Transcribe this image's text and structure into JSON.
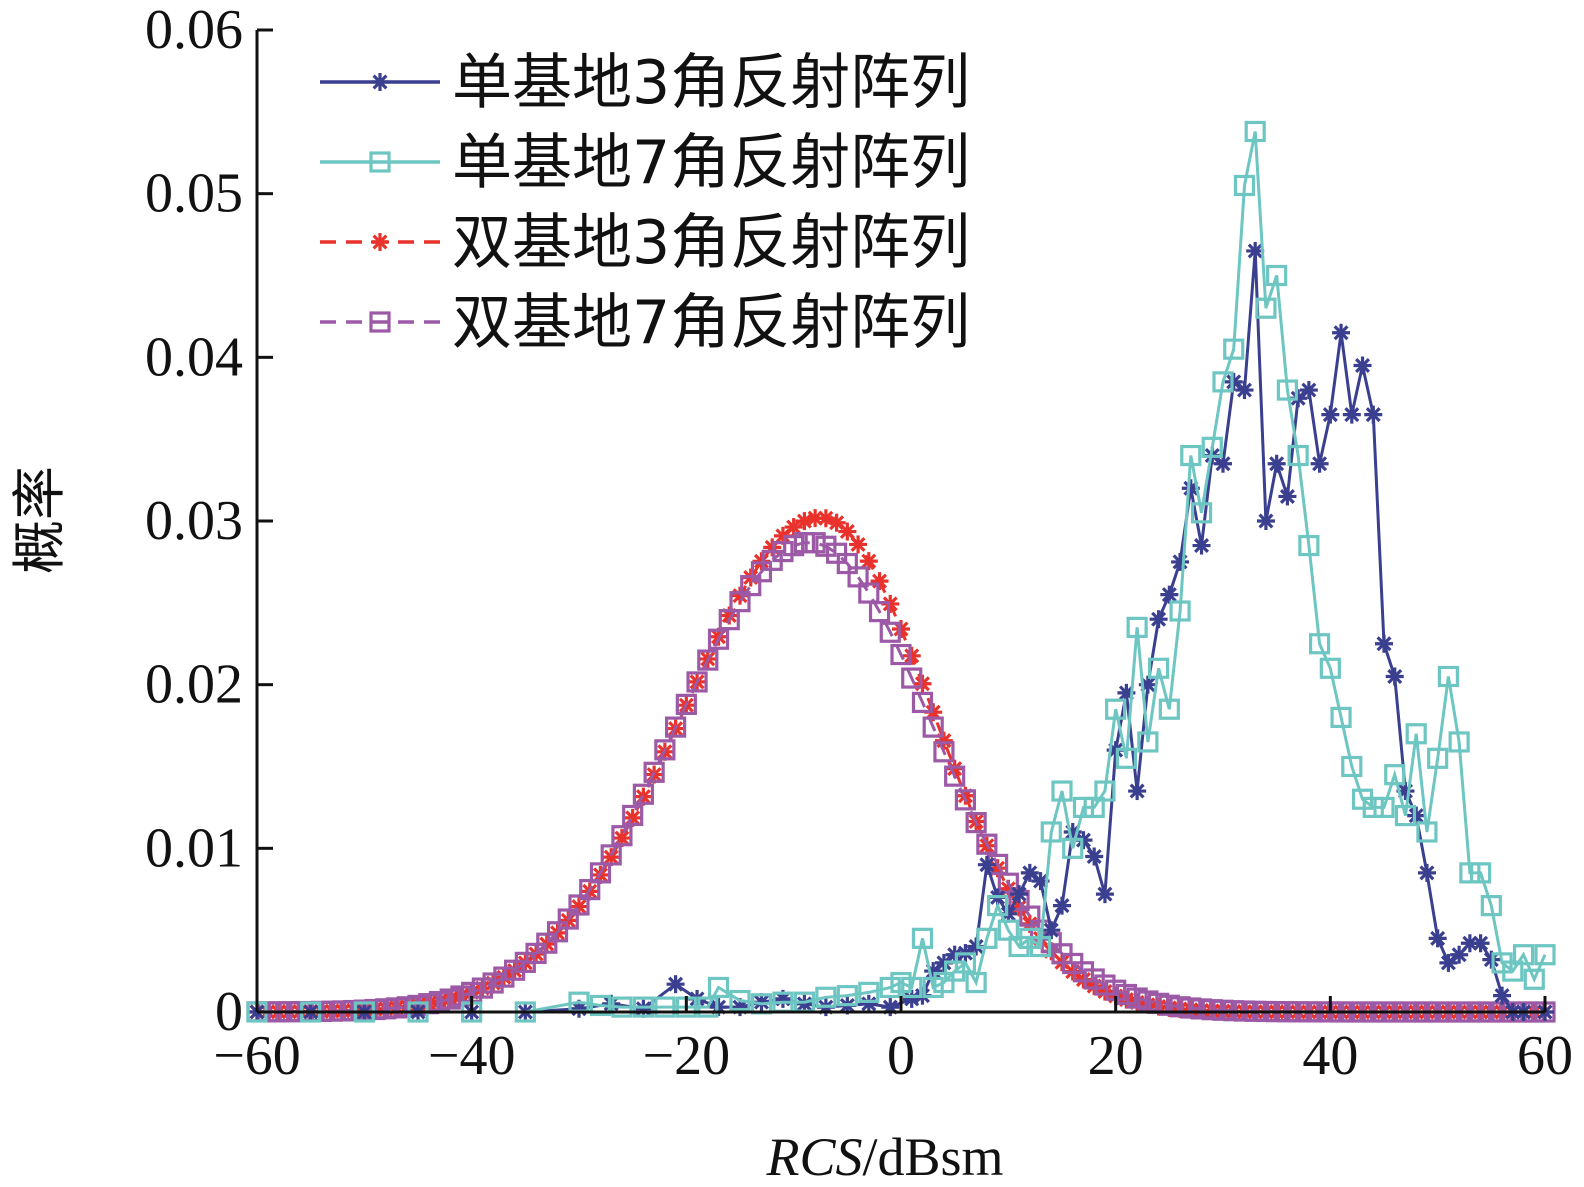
{
  "chart_data": {
    "type": "line",
    "xlabel_italic": "RCS",
    "xlabel_unit": "/dBsm",
    "ylabel": "概率",
    "xlim": [
      -60,
      60
    ],
    "ylim": [
      0,
      0.06
    ],
    "x_ticks": [
      -60,
      -40,
      -20,
      0,
      20,
      40,
      60
    ],
    "x_tick_labels": [
      "−60",
      "−40",
      "−20",
      "0",
      "20",
      "40",
      "60"
    ],
    "y_ticks": [
      0,
      0.01,
      0.02,
      0.03,
      0.04,
      0.05,
      0.06
    ],
    "y_tick_labels": [
      "0",
      "0.01",
      "0.02",
      "0.03",
      "0.04",
      "0.05",
      "0.06"
    ],
    "grid": false,
    "legend_position": "top-left",
    "series": [
      {
        "name": "单基地3角反射阵列",
        "color": "#3b3f8f",
        "marker": "asterisk",
        "line_style": "solid",
        "gauss": false,
        "points": [
          [
            -60,
            0
          ],
          [
            -55,
            0
          ],
          [
            -50,
            0
          ],
          [
            -45,
            0
          ],
          [
            -40,
            0
          ],
          [
            -35,
            0
          ],
          [
            -30,
            0.0002
          ],
          [
            -27,
            0.0005
          ],
          [
            -24,
            0.0002
          ],
          [
            -21,
            0.0017
          ],
          [
            -19,
            0.0008
          ],
          [
            -17,
            0.0003
          ],
          [
            -15,
            0.0003
          ],
          [
            -13,
            0.0006
          ],
          [
            -11,
            0.0008
          ],
          [
            -9,
            0.0005
          ],
          [
            -7,
            0.0003
          ],
          [
            -5,
            0.0004
          ],
          [
            -3,
            0.0005
          ],
          [
            -1,
            0.0003
          ],
          [
            1,
            0.0008
          ],
          [
            2,
            0.001
          ],
          [
            3,
            0.0025
          ],
          [
            4,
            0.003
          ],
          [
            5,
            0.0035
          ],
          [
            6,
            0.0036
          ],
          [
            7,
            0.004
          ],
          [
            8,
            0.009
          ],
          [
            9,
            0.007
          ],
          [
            10,
            0.006
          ],
          [
            11,
            0.0072
          ],
          [
            12,
            0.0085
          ],
          [
            13,
            0.008
          ],
          [
            14,
            0.005
          ],
          [
            15,
            0.0065
          ],
          [
            16,
            0.011
          ],
          [
            17,
            0.0105
          ],
          [
            18,
            0.0095
          ],
          [
            19,
            0.0072
          ],
          [
            20,
            0.016
          ],
          [
            21,
            0.0195
          ],
          [
            22,
            0.0135
          ],
          [
            23,
            0.02
          ],
          [
            24,
            0.024
          ],
          [
            25,
            0.0255
          ],
          [
            26,
            0.0275
          ],
          [
            27,
            0.032
          ],
          [
            28,
            0.0285
          ],
          [
            29,
            0.034
          ],
          [
            30,
            0.0335
          ],
          [
            31,
            0.0385
          ],
          [
            32,
            0.038
          ],
          [
            33,
            0.0465
          ],
          [
            34,
            0.03
          ],
          [
            35,
            0.0335
          ],
          [
            36,
            0.0315
          ],
          [
            37,
            0.0375
          ],
          [
            38,
            0.038
          ],
          [
            39,
            0.0335
          ],
          [
            40,
            0.0365
          ],
          [
            41,
            0.0415
          ],
          [
            42,
            0.0365
          ],
          [
            43,
            0.0395
          ],
          [
            44,
            0.0365
          ],
          [
            45,
            0.0225
          ],
          [
            46,
            0.0205
          ],
          [
            47,
            0.0135
          ],
          [
            48,
            0.012
          ],
          [
            49,
            0.0085
          ],
          [
            50,
            0.0045
          ],
          [
            51,
            0.003
          ],
          [
            52,
            0.0035
          ],
          [
            53,
            0.0042
          ],
          [
            54,
            0.0042
          ],
          [
            55,
            0.0032
          ],
          [
            56,
            0.001
          ],
          [
            57,
            0
          ],
          [
            58,
            0
          ],
          [
            60,
            0
          ]
        ]
      },
      {
        "name": "单基地7角反射阵列",
        "color": "#6dc6c2",
        "marker": "square",
        "line_style": "solid",
        "gauss": false,
        "points": [
          [
            -60,
            0
          ],
          [
            -55,
            0
          ],
          [
            -50,
            0
          ],
          [
            -45,
            0
          ],
          [
            -40,
            0
          ],
          [
            -35,
            0
          ],
          [
            -30,
            0.0006
          ],
          [
            -28,
            0.0004
          ],
          [
            -26,
            0.0003
          ],
          [
            -24,
            0.0003
          ],
          [
            -22,
            0.0003
          ],
          [
            -20,
            0.0003
          ],
          [
            -18,
            0.0003
          ],
          [
            -17,
            0.0015
          ],
          [
            -15,
            0.0007
          ],
          [
            -13,
            0.0005
          ],
          [
            -11,
            0.0006
          ],
          [
            -9,
            0.0006
          ],
          [
            -7,
            0.0009
          ],
          [
            -5,
            0.001
          ],
          [
            -3,
            0.0012
          ],
          [
            -1,
            0.0015
          ],
          [
            0,
            0.0018
          ],
          [
            1,
            0.0015
          ],
          [
            2,
            0.0045
          ],
          [
            3,
            0.0015
          ],
          [
            4,
            0.0018
          ],
          [
            5,
            0.0025
          ],
          [
            6,
            0.003
          ],
          [
            7,
            0.0018
          ],
          [
            8,
            0.0045
          ],
          [
            9,
            0.0065
          ],
          [
            10,
            0.005
          ],
          [
            11,
            0.004
          ],
          [
            12,
            0.0045
          ],
          [
            13,
            0.004
          ],
          [
            14,
            0.011
          ],
          [
            15,
            0.0135
          ],
          [
            16,
            0.01
          ],
          [
            17,
            0.0125
          ],
          [
            18,
            0.0125
          ],
          [
            19,
            0.0135
          ],
          [
            20,
            0.0185
          ],
          [
            21,
            0.0155
          ],
          [
            22,
            0.0235
          ],
          [
            23,
            0.0165
          ],
          [
            24,
            0.021
          ],
          [
            25,
            0.0185
          ],
          [
            26,
            0.0245
          ],
          [
            27,
            0.034
          ],
          [
            28,
            0.0305
          ],
          [
            29,
            0.0345
          ],
          [
            30,
            0.0385
          ],
          [
            31,
            0.0405
          ],
          [
            32,
            0.0505
          ],
          [
            33,
            0.0538
          ],
          [
            34,
            0.043
          ],
          [
            35,
            0.045
          ],
          [
            36,
            0.038
          ],
          [
            37,
            0.034
          ],
          [
            38,
            0.0285
          ],
          [
            39,
            0.0225
          ],
          [
            40,
            0.021
          ],
          [
            41,
            0.018
          ],
          [
            42,
            0.015
          ],
          [
            43,
            0.013
          ],
          [
            44,
            0.0125
          ],
          [
            45,
            0.0125
          ],
          [
            46,
            0.0145
          ],
          [
            47,
            0.012
          ],
          [
            48,
            0.017
          ],
          [
            49,
            0.011
          ],
          [
            50,
            0.0155
          ],
          [
            51,
            0.0205
          ],
          [
            52,
            0.0165
          ],
          [
            53,
            0.0085
          ],
          [
            54,
            0.0085
          ],
          [
            55,
            0.0065
          ],
          [
            56,
            0.003
          ],
          [
            57,
            0.0025
          ],
          [
            58,
            0.0035
          ],
          [
            59,
            0.002
          ],
          [
            60,
            0.0035
          ]
        ]
      },
      {
        "name": "双基地3角反射阵列",
        "color": "#e8322b",
        "marker": "asterisk",
        "line_style": "dashed",
        "gauss": true,
        "mu": -7.5,
        "sigma_left": 12.8,
        "sigma_right": 10.5,
        "amp": 0.0302
      },
      {
        "name": "双基地7角反射阵列",
        "color": "#9b59a6",
        "marker": "square",
        "line_style": "dashed",
        "gauss": true,
        "mu": -8.5,
        "sigma_left": 12.5,
        "sigma_right": 11.5,
        "amp": 0.0287
      }
    ]
  }
}
